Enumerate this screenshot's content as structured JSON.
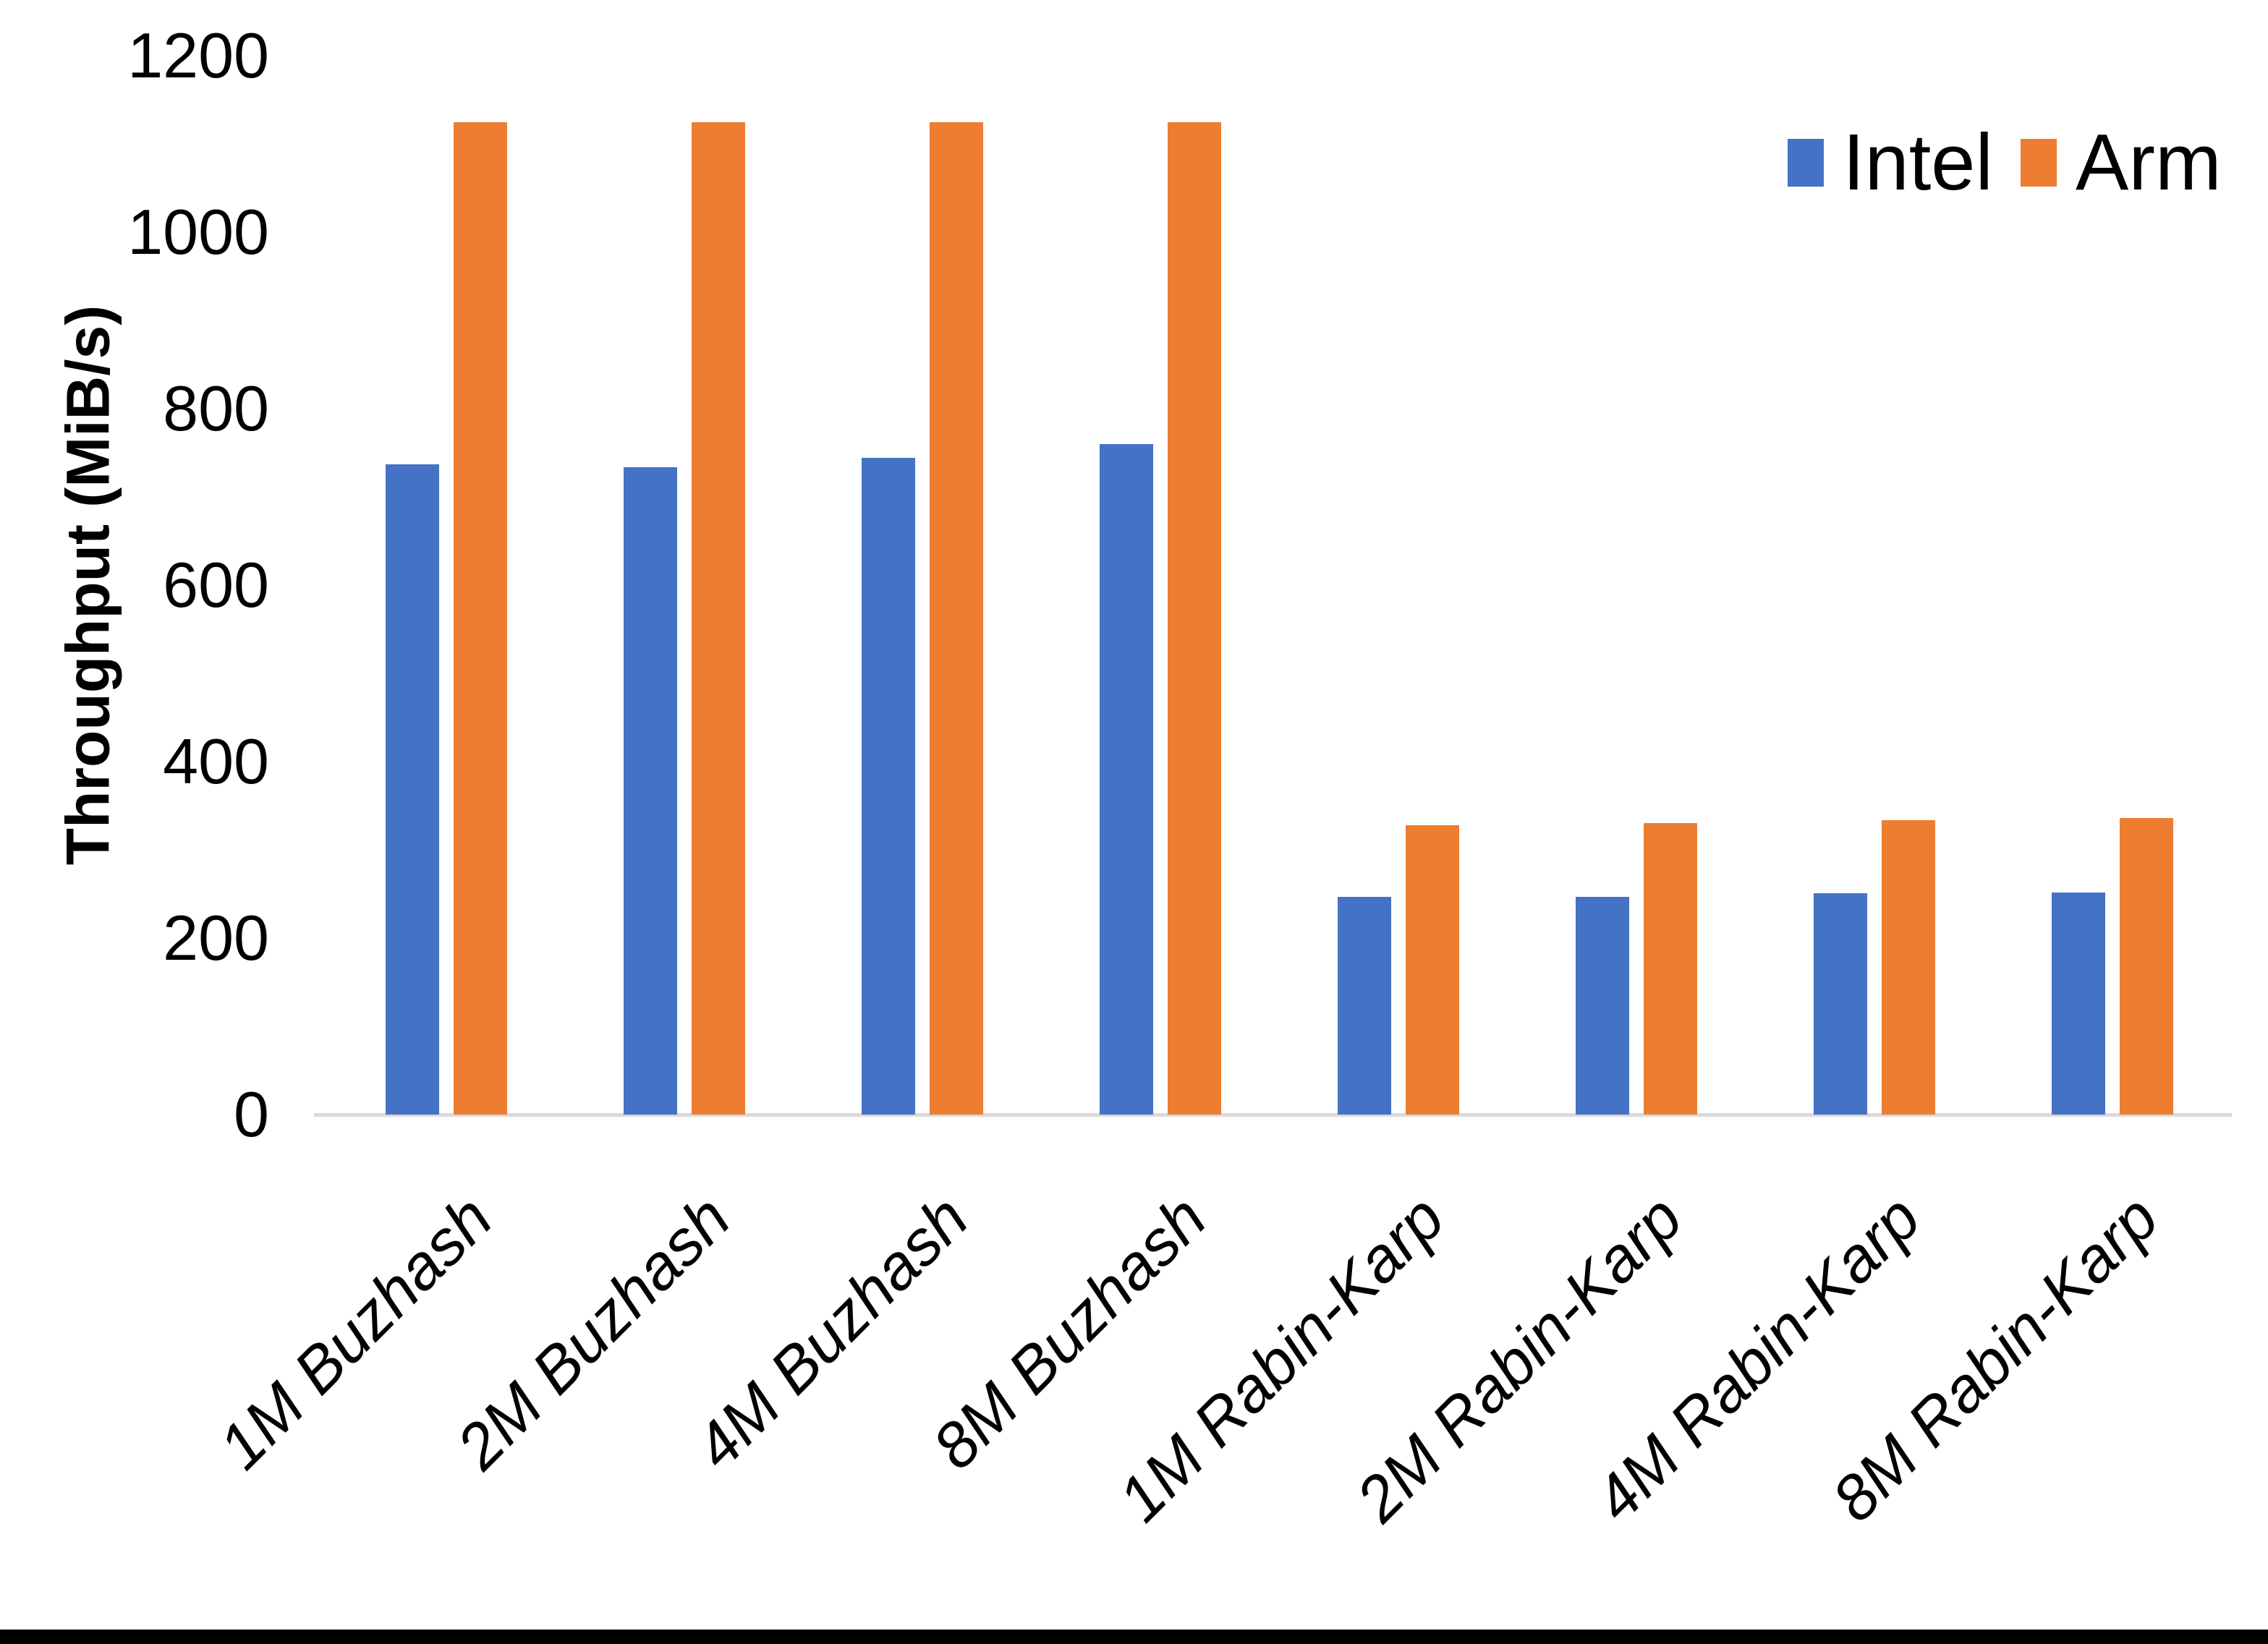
{
  "chart_data": {
    "type": "bar",
    "title": "",
    "xlabel": "",
    "ylabel": "Throughput (MiB/s)",
    "ylim": [
      0,
      1200
    ],
    "yticks": [
      0,
      200,
      400,
      600,
      800,
      1000,
      1200
    ],
    "grid": false,
    "legend_position": "top-right-inside",
    "categories": [
      "1M Buzhash",
      "2M Buzhash",
      "4M Buzhash",
      "8M Buzhash",
      "1M Rabin-Karp",
      "2M Rabin-Karp",
      "4M Rabin-Karp",
      "8M Rabin-Karp"
    ],
    "series": [
      {
        "name": "Intel",
        "color": "#4472C4",
        "values": [
          737,
          734,
          744,
          760,
          247,
          247,
          251,
          252
        ]
      },
      {
        "name": "Arm",
        "color": "#ED7D31",
        "values": [
          1125,
          1125,
          1125,
          1125,
          328,
          330,
          334,
          336
        ]
      }
    ]
  },
  "colors": {
    "axis_line": "#D9D9D9",
    "background": "#FFFFFF",
    "bottom_border": "#000000",
    "text": "#000000"
  }
}
